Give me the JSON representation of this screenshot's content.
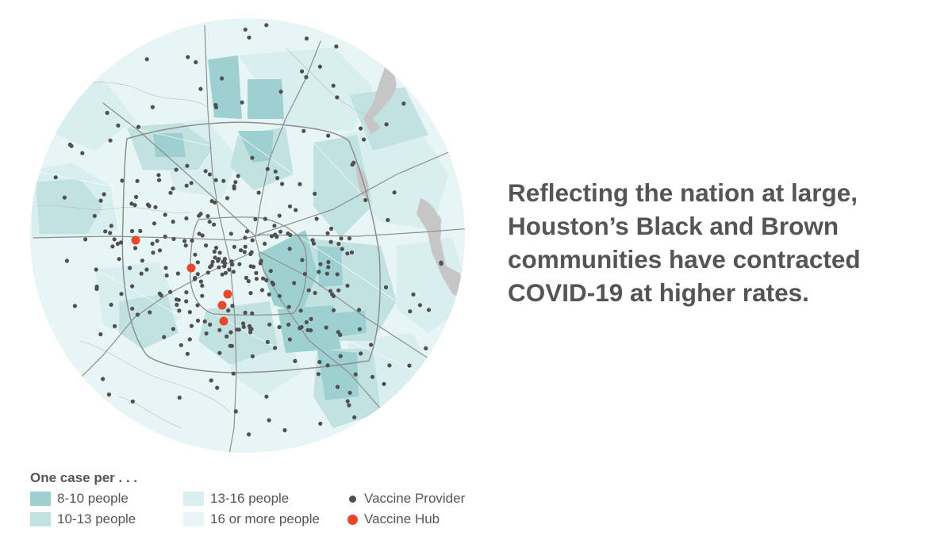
{
  "headline": {
    "lines": [
      "Reflecting the nation at large,",
      "Houston’s Black and Brown",
      "communities have contracted",
      "COVID-19 at higher rates."
    ]
  },
  "legend": {
    "title": "One case per . . .",
    "items": [
      {
        "label": "8-10 people",
        "color": "#9ed0d1"
      },
      {
        "label": "10-13 people",
        "color": "#c2e2e2"
      },
      {
        "label": "13-16 people",
        "color": "#d9eeee"
      },
      {
        "label": "16 or more people",
        "color": "#e8f5f5"
      }
    ],
    "provider": {
      "label": "Vaccine Provider",
      "color": "#505050"
    },
    "hub": {
      "label": "Vaccine Hub",
      "color": "#e8472b"
    }
  },
  "map": {
    "water_color": "#c6c6c6",
    "road_color": "#8e8e8e"
  }
}
